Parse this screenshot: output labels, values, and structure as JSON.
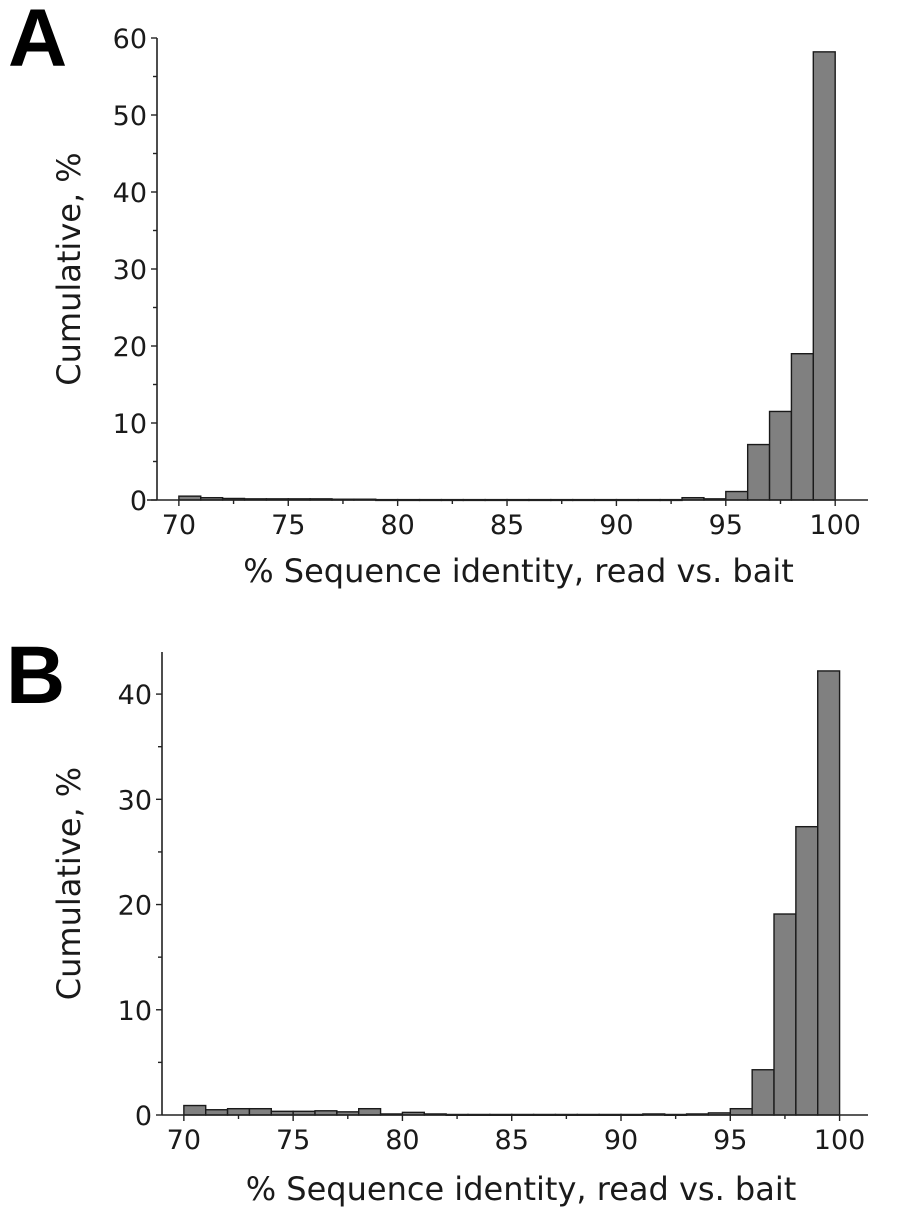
{
  "chart_data": [
    {
      "panel_label": "A",
      "type": "bar",
      "xlabel": "% Sequence identity, read vs. bait",
      "ylabel": "Cumulative, %",
      "xlim": [
        69,
        101.5
      ],
      "ylim": [
        0,
        60
      ],
      "xticks": [
        70,
        75,
        80,
        85,
        90,
        95,
        100
      ],
      "yticks": [
        0,
        10,
        20,
        30,
        40,
        50,
        60
      ],
      "bin_width": 1,
      "bin_starts": [
        70,
        71,
        72,
        73,
        74,
        75,
        76,
        77,
        78,
        79,
        80,
        81,
        82,
        83,
        84,
        85,
        86,
        87,
        88,
        89,
        90,
        91,
        92,
        93,
        94,
        95,
        96,
        97,
        98,
        99
      ],
      "values": [
        0.5,
        0.3,
        0.2,
        0.15,
        0.15,
        0.15,
        0.15,
        0.1,
        0.1,
        0.05,
        0.05,
        0.05,
        0.05,
        0.05,
        0.05,
        0.05,
        0.05,
        0.05,
        0.05,
        0.05,
        0.05,
        0.05,
        0.05,
        0.3,
        0.15,
        1.1,
        7.2,
        11.5,
        19.0,
        58.2
      ]
    },
    {
      "panel_label": "B",
      "type": "bar",
      "xlabel": "% Sequence identity, read vs. bait",
      "ylabel": "Cumulative, %",
      "xlim": [
        69,
        101.3
      ],
      "ylim": [
        0,
        44
      ],
      "xticks": [
        70,
        75,
        80,
        85,
        90,
        95,
        100
      ],
      "yticks": [
        0,
        10,
        20,
        30,
        40
      ],
      "bin_width": 1,
      "bin_starts": [
        70,
        71,
        72,
        73,
        74,
        75,
        76,
        77,
        78,
        79,
        80,
        81,
        82,
        83,
        84,
        85,
        86,
        87,
        88,
        89,
        90,
        91,
        92,
        93,
        94,
        95,
        96,
        97,
        98,
        99
      ],
      "values": [
        0.9,
        0.5,
        0.6,
        0.6,
        0.35,
        0.35,
        0.4,
        0.3,
        0.6,
        0.1,
        0.25,
        0.1,
        0.05,
        0.05,
        0.05,
        0.05,
        0.05,
        0.05,
        0.05,
        0.05,
        0.05,
        0.1,
        0.05,
        0.1,
        0.2,
        0.6,
        4.3,
        19.1,
        27.4,
        42.2
      ]
    }
  ]
}
